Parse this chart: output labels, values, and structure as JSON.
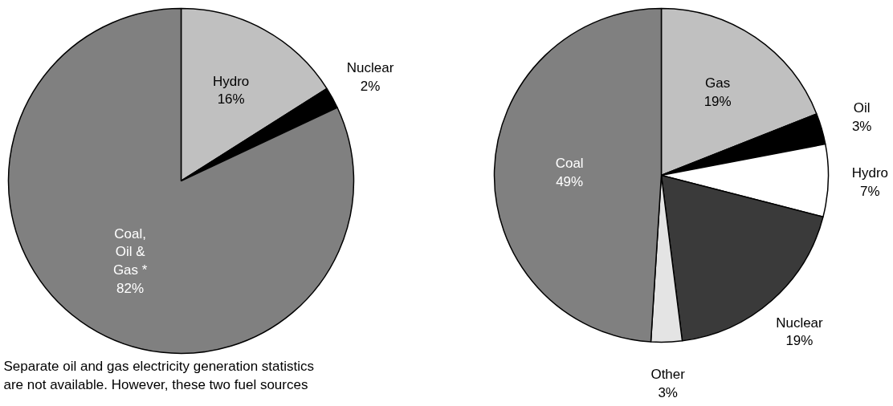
{
  "chart_data": [
    {
      "type": "pie",
      "categories": [
        "Hydro",
        "Nuclear",
        "Coal, Oil & Gas *"
      ],
      "values": [
        16,
        2,
        82
      ],
      "value_labels": [
        "16%",
        "2%",
        "82%"
      ],
      "colors": [
        "#c0c0c0",
        "#000000",
        "#808080"
      ],
      "annotations": [
        "Separate oil and gas electricity generation statistics are not available. However, these two fuel sources"
      ]
    },
    {
      "type": "pie",
      "categories": [
        "Gas",
        "Oil",
        "Hydro",
        "Nuclear",
        "Other",
        "Coal"
      ],
      "values": [
        19,
        3,
        7,
        19,
        3,
        49
      ],
      "value_labels": [
        "19%",
        "3%",
        "7%",
        "19%",
        "3%",
        "49%"
      ],
      "colors": [
        "#c0c0c0",
        "#000000",
        "#ffffff",
        "#3a3a3a",
        "#e4e4e4",
        "#808080"
      ]
    }
  ]
}
